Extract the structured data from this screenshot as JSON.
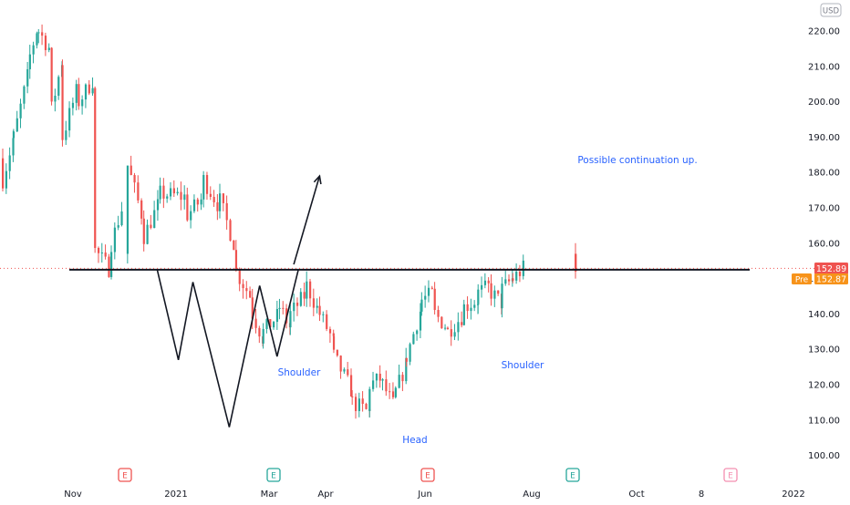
{
  "chart_data": {
    "type": "candlestick",
    "title": "",
    "currency_label": "USD",
    "y_range": [
      100,
      222
    ],
    "y_ticks": [
      "220.00",
      "210.00",
      "200.00",
      "190.00",
      "180.00",
      "170.00",
      "160.00",
      "150.00",
      "140.00",
      "130.00",
      "120.00",
      "110.00",
      "100.00"
    ],
    "x_ticks": [
      "Nov",
      "2021",
      "Mar",
      "Apr",
      "Jun",
      "Aug",
      "Oct",
      "8",
      "2022"
    ],
    "price_tags": {
      "last": "152.89",
      "pre_label": "Pre",
      "pre": "152.87",
      "last_color": "#ef5350",
      "pre_color": "#f7931a"
    },
    "neckline_price": 152.5,
    "annotations": [
      "Shoulder",
      "Head",
      "Shoulder",
      "Possible continuation up."
    ],
    "earnings_markers": [
      {
        "label": "E",
        "color": "#ef5350"
      },
      {
        "label": "E",
        "color": "#26a69a"
      },
      {
        "label": "E",
        "color": "#ef5350"
      },
      {
        "label": "E",
        "color": "#26a69a"
      },
      {
        "label": "E",
        "color": "#f48fb1"
      }
    ],
    "pattern_points": [
      {
        "date": "2021-02-20",
        "price": 152.5
      },
      {
        "date": "2021-03-20",
        "price": 127
      },
      {
        "date": "2021-04-08",
        "price": 149
      },
      {
        "date": "2021-05-26",
        "price": 108
      },
      {
        "date": "2021-07-05",
        "price": 148
      },
      {
        "date": "2021-07-28",
        "price": 128
      },
      {
        "date": "2021-08-25",
        "price": 152.5
      }
    ],
    "arrow": {
      "from": {
        "date": "2021-08-19",
        "price": 154
      },
      "to": {
        "date": "2021-09-22",
        "price": 179
      }
    },
    "colors": {
      "up": "#26a69a",
      "down": "#ef5350"
    }
  }
}
